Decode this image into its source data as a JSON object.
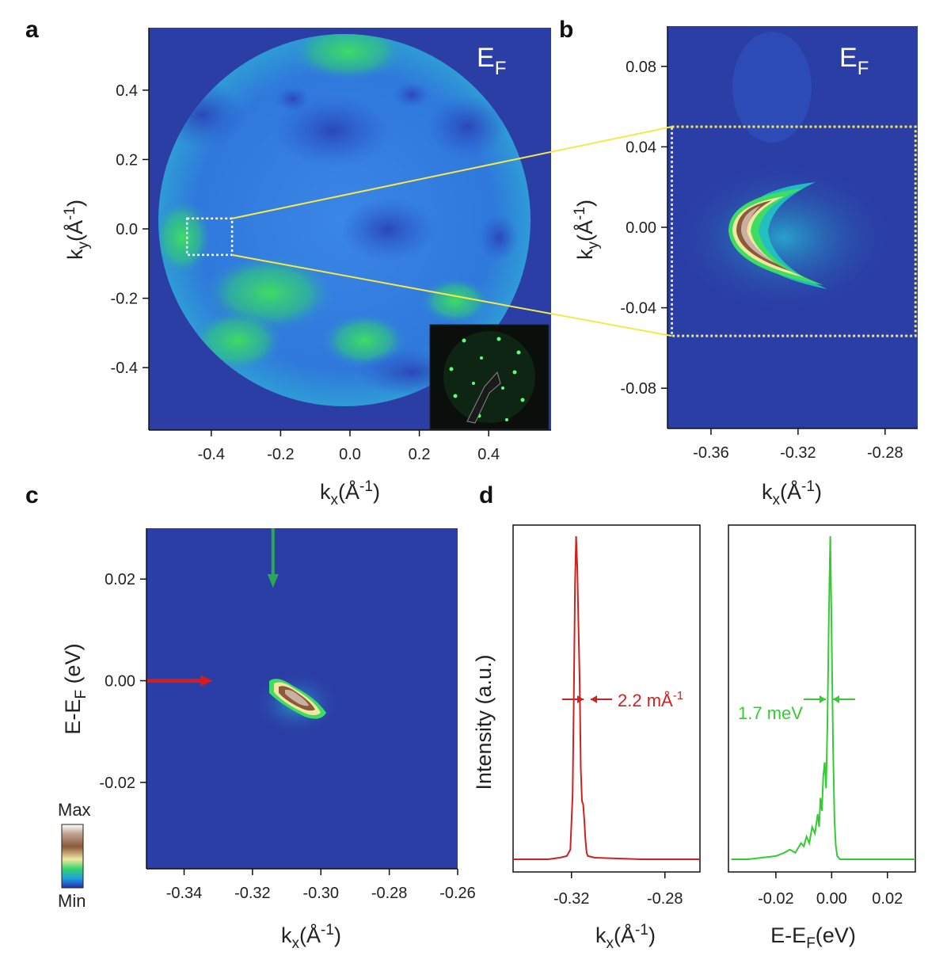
{
  "colors": {
    "background_map": "#2b3ea6",
    "red_trace": "#cc2222",
    "green_trace": "#33cc33",
    "zoom_box": "#f5e84a",
    "arrow_green": "#2aa855",
    "arrow_red": "#dd1a1a"
  },
  "panels": {
    "a": {
      "letter": "a",
      "overlay": "E",
      "overlay_sub": "F",
      "xlabel": "k",
      "xlabel_sub": "x",
      "xlabel_tail": "(Å",
      "xlabel_sup": "-1",
      "xlabel_close": ")",
      "ylabel": "k",
      "ylabel_sub": "y",
      "ylabel_tail": "(Å",
      "ylabel_sup": "-1",
      "ylabel_close": ")"
    },
    "b": {
      "letter": "b",
      "overlay": "E",
      "overlay_sub": "F",
      "xlabel": "k",
      "xlabel_sub": "x",
      "xlabel_tail": "(Å",
      "xlabel_sup": "-1",
      "xlabel_close": ")",
      "ylabel": "k",
      "ylabel_sub": "y",
      "ylabel_tail": "(Å",
      "ylabel_sup": "-1",
      "ylabel_close": ")"
    },
    "c": {
      "letter": "c",
      "xlabel": "k",
      "xlabel_sub": "x",
      "xlabel_tail": "(Å",
      "xlabel_sup": "-1",
      "xlabel_close": ")",
      "ylabel": "E-E",
      "ylabel_sub": "F",
      "ylabel_tail": " (eV)",
      "colorbar_max": "Max",
      "colorbar_min": "Min"
    },
    "d": {
      "letter": "d",
      "ylabel": "Intensity (a.u.)",
      "left_xlabel": "k",
      "left_xlabel_sub": "x",
      "left_xlabel_tail": "(Å",
      "left_xlabel_sup": "-1",
      "left_xlabel_close": ")",
      "right_xlabel": "E-E",
      "right_xlabel_sub": "F",
      "right_xlabel_tail": "(eV)",
      "width_label_k": "2.2 mÅ",
      "width_label_k_sup": "-1",
      "width_label_e": "1.7 meV"
    }
  },
  "chart_data": [
    {
      "panel": "a",
      "type": "heatmap",
      "description_of_axes": "Fermi surface map",
      "xlim": [
        -0.58,
        0.58
      ],
      "ylim": [
        -0.58,
        0.58
      ],
      "xticks": [
        "-0.4",
        "-0.2",
        "0.0",
        "0.2",
        "0.4"
      ],
      "xtick_values": [
        -0.4,
        -0.2,
        0.0,
        0.2,
        0.4
      ],
      "yticks": [
        "0.4",
        "0.2",
        "0.0",
        "-0.2",
        "-0.4"
      ],
      "ytick_values": [
        0.4,
        0.2,
        0.0,
        -0.2,
        -0.4
      ],
      "zoom_box": {
        "kx": [
          -0.47,
          -0.34
        ],
        "ky": [
          -0.075,
          0.03
        ]
      }
    },
    {
      "panel": "b",
      "type": "heatmap",
      "xlim": [
        -0.38,
        -0.265
      ],
      "ylim": [
        -0.1,
        0.1
      ],
      "xticks": [
        "-0.36",
        "-0.32",
        "-0.28"
      ],
      "xtick_values": [
        -0.36,
        -0.32,
        -0.28
      ],
      "yticks": [
        "0.08",
        "0.04",
        "0.00",
        "-0.04",
        "-0.08"
      ],
      "ytick_values": [
        0.08,
        0.04,
        0.0,
        -0.04,
        -0.08
      ],
      "zoom_box": {
        "kx": [
          -0.378,
          -0.266
        ],
        "ky": [
          -0.054,
          0.05
        ]
      }
    },
    {
      "panel": "c",
      "type": "heatmap",
      "xlim": [
        -0.351,
        -0.26
      ],
      "ylim": [
        -0.037,
        0.03
      ],
      "xticks": [
        "-0.34",
        "-0.32",
        "-0.30",
        "-0.28",
        "-0.26"
      ],
      "xtick_values": [
        -0.34,
        -0.32,
        -0.3,
        -0.28,
        -0.26
      ],
      "yticks": [
        "0.02",
        "0.00",
        "-0.02"
      ],
      "ytick_values": [
        0.02,
        0.0,
        -0.02
      ],
      "arrows": [
        {
          "color": "green",
          "kx": -0.314,
          "direction": "down"
        },
        {
          "color": "red",
          "energy": 0.0,
          "direction": "right"
        }
      ]
    },
    {
      "panel": "d-left",
      "type": "line",
      "series_color": "red",
      "xlim": [
        -0.345,
        -0.265
      ],
      "xticks": [
        "-0.32",
        "-0.28"
      ],
      "xtick_values": [
        -0.32,
        -0.28
      ],
      "x": [
        -0.345,
        -0.33,
        -0.325,
        -0.322,
        -0.3205,
        -0.3195,
        -0.319,
        -0.3185,
        -0.318,
        -0.3175,
        -0.317,
        -0.3165,
        -0.316,
        -0.3155,
        -0.315,
        -0.3145,
        -0.314,
        -0.3135,
        -0.313,
        -0.31,
        -0.29,
        -0.265
      ],
      "y": [
        0.0,
        0.0,
        0.005,
        0.01,
        0.03,
        0.2,
        0.5,
        0.85,
        1.0,
        0.9,
        0.72,
        0.55,
        0.28,
        0.18,
        0.17,
        0.12,
        0.06,
        0.02,
        0.01,
        0.005,
        0.0,
        0.0
      ]
    },
    {
      "panel": "d-right",
      "type": "line",
      "series_color": "green",
      "xlim": [
        -0.037,
        0.03
      ],
      "xticks": [
        "-0.02",
        "0.00",
        "0.02"
      ],
      "xtick_values": [
        -0.02,
        0.0,
        0.02
      ],
      "x": [
        -0.036,
        -0.03,
        -0.025,
        -0.02,
        -0.017,
        -0.015,
        -0.013,
        -0.011,
        -0.01,
        -0.009,
        -0.008,
        -0.007,
        -0.006,
        -0.005,
        -0.0045,
        -0.004,
        -0.0035,
        -0.003,
        -0.0025,
        -0.002,
        -0.0015,
        -0.001,
        -0.0005,
        0.0,
        0.0005,
        0.001,
        0.0015,
        0.002,
        0.003,
        0.005,
        0.01,
        0.02,
        0.03
      ],
      "y": [
        0.0,
        0.0,
        0.005,
        0.01,
        0.02,
        0.03,
        0.02,
        0.05,
        0.04,
        0.07,
        0.05,
        0.1,
        0.08,
        0.14,
        0.1,
        0.19,
        0.15,
        0.26,
        0.3,
        0.22,
        0.42,
        0.75,
        1.0,
        0.7,
        0.35,
        0.12,
        0.04,
        0.01,
        0.0,
        0.0,
        0.0,
        0.0,
        0.0
      ]
    }
  ]
}
